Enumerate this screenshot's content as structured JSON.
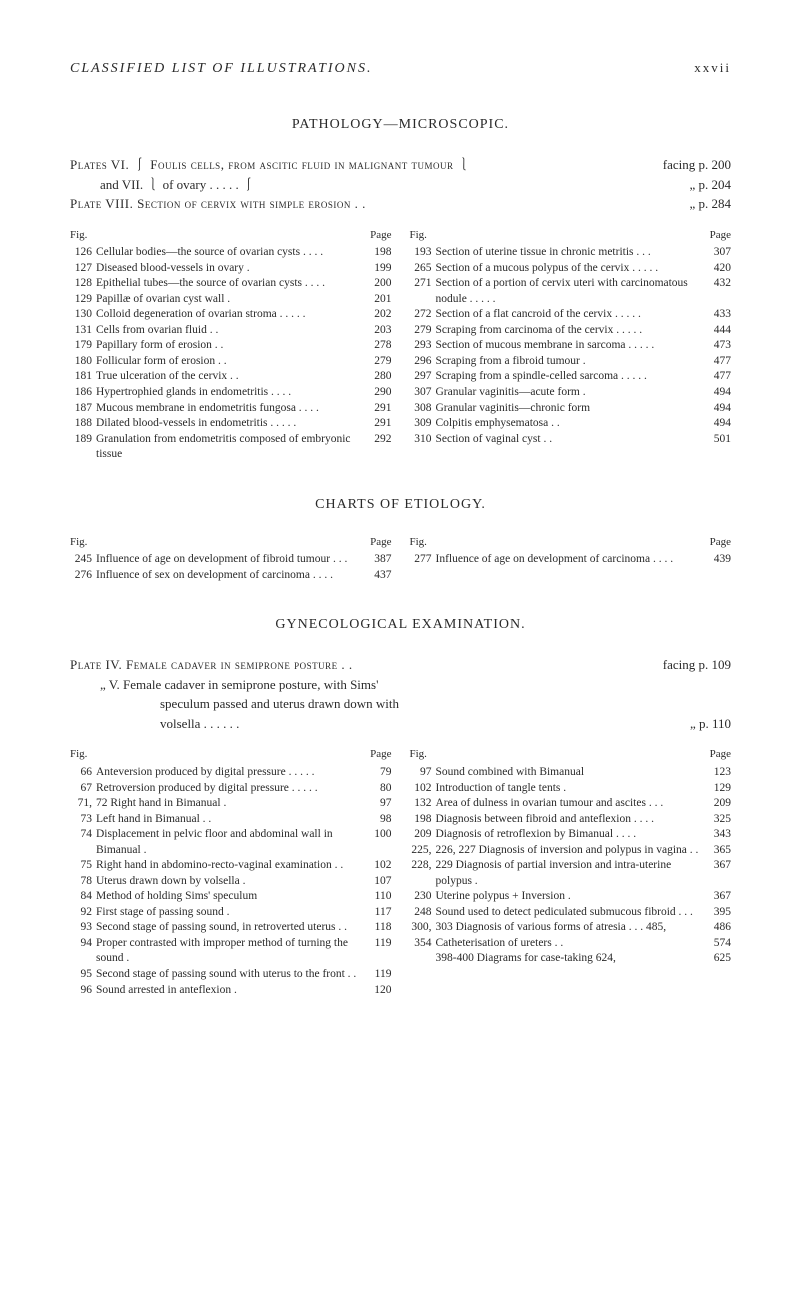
{
  "header": {
    "title": "CLASSIFIED LIST OF ILLUSTRATIONS.",
    "roman": "xxvii"
  },
  "pathology": {
    "section_title": "PATHOLOGY—MICROSCOPIC.",
    "intro": [
      {
        "left": "Plates VI. ⎰ Foulis cells, from ascitic fluid in malignant tumour ⎱",
        "right": "facing p. 200"
      },
      {
        "left": "and VII. ⎱ of ovary . . . . . ⎰",
        "right": "„ p. 204"
      },
      {
        "left": "Plate VIII. Section of cervix with simple erosion . .",
        "right": "„ p. 284"
      }
    ],
    "left_col_header": {
      "fig": "Fig.",
      "page": "Page"
    },
    "right_col_header": {
      "fig": "Fig.",
      "page": "Page"
    },
    "left_entries": [
      {
        "num": "126",
        "text": "Cellular bodies—the source of ovarian cysts . . . .",
        "pg": "198"
      },
      {
        "num": "127",
        "text": "Diseased blood-vessels in ovary .",
        "pg": "199"
      },
      {
        "num": "128",
        "text": "Epithelial tubes—the source of ovarian cysts . . . .",
        "pg": "200"
      },
      {
        "num": "129",
        "text": "Papillæ of ovarian cyst wall .",
        "pg": "201"
      },
      {
        "num": "130",
        "text": "Colloid degeneration of ovarian stroma . . . . .",
        "pg": "202"
      },
      {
        "num": "131",
        "text": "Cells from ovarian fluid . .",
        "pg": "203"
      },
      {
        "num": "179",
        "text": "Papillary form of erosion . .",
        "pg": "278"
      },
      {
        "num": "180",
        "text": "Follicular form of erosion . .",
        "pg": "279"
      },
      {
        "num": "181",
        "text": "True ulceration of the cervix . .",
        "pg": "280"
      },
      {
        "num": "186",
        "text": "Hypertrophied glands in endometritis . . . .",
        "pg": "290"
      },
      {
        "num": "187",
        "text": "Mucous membrane in endometritis fungosa . . . .",
        "pg": "291"
      },
      {
        "num": "188",
        "text": "Dilated blood-vessels in endometritis . . . . .",
        "pg": "291"
      },
      {
        "num": "189",
        "text": "Granulation from endometritis composed of embryonic tissue",
        "pg": "292"
      }
    ],
    "right_entries": [
      {
        "num": "193",
        "text": "Section of uterine tissue in chronic metritis . . .",
        "pg": "307"
      },
      {
        "num": "265",
        "text": "Section of a mucous polypus of the cervix . . . . .",
        "pg": "420"
      },
      {
        "num": "271",
        "text": "Section of a portion of cervix uteri with carcinomatous nodule . . . . .",
        "pg": "432"
      },
      {
        "num": "272",
        "text": "Section of a flat cancroid of the cervix . . . . .",
        "pg": "433"
      },
      {
        "num": "279",
        "text": "Scraping from carcinoma of the cervix . . . . .",
        "pg": "444"
      },
      {
        "num": "293",
        "text": "Section of mucous membrane in sarcoma . . . . .",
        "pg": "473"
      },
      {
        "num": "296",
        "text": "Scraping from a fibroid tumour .",
        "pg": "477"
      },
      {
        "num": "297",
        "text": "Scraping from a spindle-celled sarcoma . . . . .",
        "pg": "477"
      },
      {
        "num": "307",
        "text": "Granular vaginitis—acute form .",
        "pg": "494"
      },
      {
        "num": "308",
        "text": "Granular vaginitis—chronic form",
        "pg": "494"
      },
      {
        "num": "309",
        "text": "Colpitis emphysematosa . .",
        "pg": "494"
      },
      {
        "num": "310",
        "text": "Section of vaginal cyst . .",
        "pg": "501"
      }
    ]
  },
  "charts": {
    "section_title": "CHARTS OF ETIOLOGY.",
    "left_col_header": {
      "fig": "Fig.",
      "page": "Page"
    },
    "right_col_header": {
      "fig": "Fig.",
      "page": "Page"
    },
    "left_entries": [
      {
        "num": "245",
        "text": "Influence of age on development of fibroid tumour . . .",
        "pg": "387"
      },
      {
        "num": "276",
        "text": "Influence of sex on development of carcinoma . . . .",
        "pg": "437"
      }
    ],
    "right_entries": [
      {
        "num": "277",
        "text": "Influence of age on development of carcinoma . . . .",
        "pg": "439"
      }
    ]
  },
  "gyn": {
    "section_title": "GYNECOLOGICAL EXAMINATION.",
    "intro": [
      {
        "left": "Plate IV. Female cadaver in semiprone posture . .",
        "right": "facing p. 109"
      },
      {
        "left": "„ V. Female cadaver in semiprone posture, with Sims'",
        "right": ""
      },
      {
        "left": "speculum passed and uterus drawn down with",
        "right": ""
      },
      {
        "left": "volsella . . . . . .",
        "right": "„ p. 110"
      }
    ],
    "left_col_header": {
      "fig": "Fig.",
      "page": "Page"
    },
    "right_col_header": {
      "fig": "Fig.",
      "page": "Page"
    },
    "left_entries": [
      {
        "num": "66",
        "text": "Anteversion produced by digital pressure . . . . .",
        "pg": "79"
      },
      {
        "num": "67",
        "text": "Retroversion produced by digital pressure . . . . .",
        "pg": "80"
      },
      {
        "num": "71,",
        "text": "72 Right hand in Bimanual .",
        "pg": "97"
      },
      {
        "num": "73",
        "text": "Left hand in Bimanual . .",
        "pg": "98"
      },
      {
        "num": "74",
        "text": "Displacement in pelvic floor and abdominal wall in Bimanual .",
        "pg": "100"
      },
      {
        "num": "75",
        "text": "Right hand in abdomino-recto-vaginal examination . .",
        "pg": "102"
      },
      {
        "num": "78",
        "text": "Uterus drawn down by volsella .",
        "pg": "107"
      },
      {
        "num": "84",
        "text": "Method of holding Sims' speculum",
        "pg": "110"
      },
      {
        "num": "92",
        "text": "First stage of passing sound .",
        "pg": "117"
      },
      {
        "num": "93",
        "text": "Second stage of passing sound, in retroverted uterus . .",
        "pg": "118"
      },
      {
        "num": "94",
        "text": "Proper contrasted with improper method of turning the sound .",
        "pg": "119"
      },
      {
        "num": "95",
        "text": "Second stage of passing sound with uterus to the front . .",
        "pg": "119"
      },
      {
        "num": "96",
        "text": "Sound arrested in anteflexion .",
        "pg": "120"
      }
    ],
    "right_entries": [
      {
        "num": "97",
        "text": "Sound combined with Bimanual",
        "pg": "123"
      },
      {
        "num": "102",
        "text": "Introduction of tangle tents .",
        "pg": "129"
      },
      {
        "num": "132",
        "text": "Area of dulness in ovarian tumour and ascites . . .",
        "pg": "209"
      },
      {
        "num": "198",
        "text": "Diagnosis between fibroid and anteflexion . . . .",
        "pg": "325"
      },
      {
        "num": "209",
        "text": "Diagnosis of retroflexion by Bimanual . . . .",
        "pg": "343"
      },
      {
        "num": "225,",
        "text": "226, 227 Diagnosis of inversion and polypus in vagina . .",
        "pg": "365"
      },
      {
        "num": "228,",
        "text": "229 Diagnosis of partial inversion and intra-uterine polypus .",
        "pg": "367"
      },
      {
        "num": "230",
        "text": "Uterine polypus + Inversion .",
        "pg": "367"
      },
      {
        "num": "248",
        "text": "Sound used to detect pediculated submucous fibroid . . .",
        "pg": "395"
      },
      {
        "num": "300,",
        "text": "303 Diagnosis of various forms of atresia . . . 485,",
        "pg": "486"
      },
      {
        "num": "354",
        "text": "Catheterisation of ureters . .",
        "pg": "574"
      },
      {
        "num": "",
        "text": "398-400 Diagrams for case-taking 624,",
        "pg": "625"
      }
    ]
  }
}
